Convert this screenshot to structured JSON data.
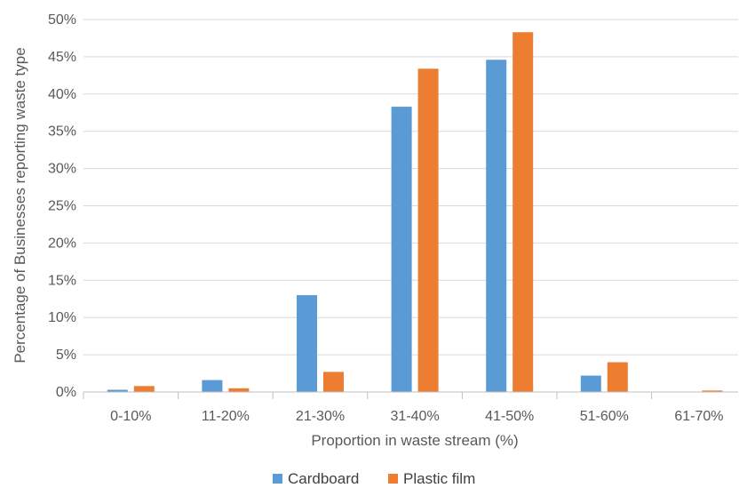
{
  "chart_data": {
    "type": "bar",
    "title": "",
    "xlabel": "Proportion in waste stream (%)",
    "ylabel": "Percentage of Businesses reporting waste type",
    "categories": [
      "0-10%",
      "11-20%",
      "21-30%",
      "31-40%",
      "41-50%",
      "51-60%",
      "61-70%"
    ],
    "series": [
      {
        "name": "Cardboard",
        "color": "#5B9BD5",
        "values": [
          0.3,
          1.6,
          13.0,
          38.3,
          44.6,
          2.2,
          0.0
        ]
      },
      {
        "name": "Plastic film",
        "color": "#ED7D31",
        "values": [
          0.8,
          0.5,
          2.7,
          43.4,
          48.3,
          4.0,
          0.2
        ]
      }
    ],
    "ylim": [
      0,
      50
    ],
    "yticks": [
      "0%",
      "5%",
      "10%",
      "15%",
      "20%",
      "25%",
      "30%",
      "35%",
      "40%",
      "45%",
      "50%"
    ],
    "grid": true,
    "legend_position": "bottom"
  }
}
